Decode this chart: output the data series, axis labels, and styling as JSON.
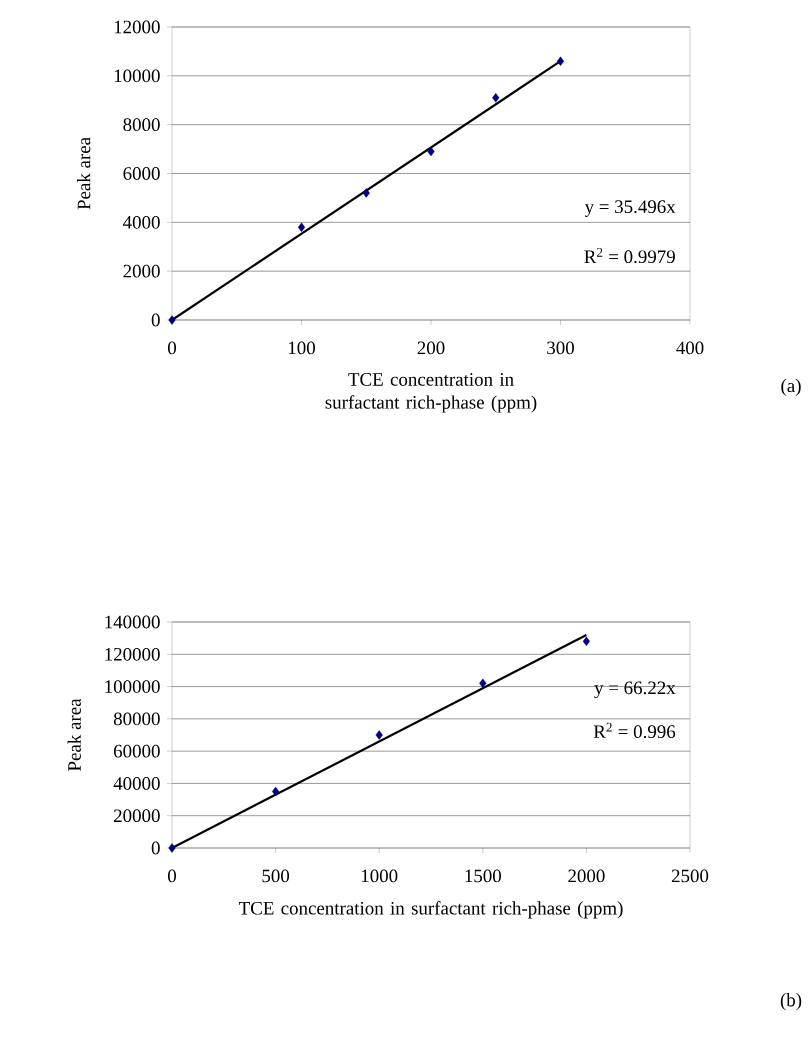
{
  "chart_data": [
    {
      "type": "scatter",
      "xlabel": "TCE concentration in surfactant rich-phase (ppm)",
      "ylabel": "Peak area",
      "x": [
        0,
        100,
        150,
        200,
        250,
        300
      ],
      "xlim": [
        0,
        400
      ],
      "xticks": [
        0,
        100,
        200,
        300,
        400
      ],
      "ylim": [
        0,
        12000
      ],
      "yticks": [
        0,
        2000,
        4000,
        6000,
        8000,
        10000,
        12000
      ],
      "grid": "y",
      "marker": "diamond",
      "series": [
        {
          "color": "#000080",
          "values": [
            0,
            3800,
            5200,
            6900,
            9100,
            10600
          ]
        },
        {
          "type": "line",
          "marker": "none",
          "color": "#000000",
          "x": [
            0,
            300
          ],
          "values": [
            0,
            10600
          ]
        }
      ],
      "annotations": [
        "y = 35.496x",
        "R$^{2}$ = 0.9979",
        "(a)"
      ]
    },
    {
      "type": "scatter",
      "xlabel": "TCE concentration in surfactant rich-phase (ppm)",
      "ylabel": "Peak area",
      "x": [
        0,
        500,
        1000,
        1500,
        2000
      ],
      "xlim": [
        0,
        2500
      ],
      "xticks": [
        0,
        500,
        1000,
        1500,
        2000,
        2500
      ],
      "ylim": [
        0,
        140000
      ],
      "yticks": [
        0,
        20000,
        40000,
        60000,
        80000,
        100000,
        120000,
        140000
      ],
      "grid": "y",
      "marker": "diamond",
      "series": [
        {
          "color": "#000080",
          "values": [
            0,
            35000,
            70000,
            102000,
            128000
          ]
        },
        {
          "type": "line",
          "marker": "none",
          "color": "#000000",
          "x": [
            0,
            2000
          ],
          "values": [
            0,
            132000
          ]
        }
      ],
      "annotations": [
        "y = 66.22x",
        "R$^{2}$ = 0.996",
        "(b)"
      ]
    }
  ]
}
